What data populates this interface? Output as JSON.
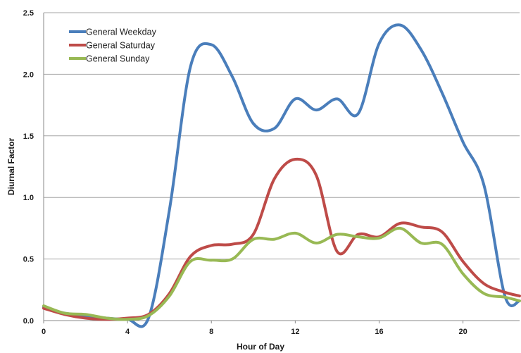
{
  "chart_data": {
    "type": "line",
    "title": "",
    "xlabel": "Hour of Day",
    "ylabel": "Diurnal Factor",
    "xlim": [
      0,
      22.7
    ],
    "ylim": [
      0,
      2.5
    ],
    "x_ticks": [
      0,
      4,
      8,
      12,
      16,
      20
    ],
    "x_tick_labels": [
      "0",
      "4",
      "8",
      "12",
      "16",
      "20"
    ],
    "y_ticks": [
      0,
      0.5,
      1.0,
      1.5,
      2.0,
      2.5
    ],
    "y_tick_labels": [
      "0.0",
      "0.5",
      "1.0",
      "1.5",
      "2.0",
      "2.5"
    ],
    "grid": "horizontal",
    "legend_position": "top-left",
    "series": [
      {
        "name": "General Weekday",
        "color": "#4a7ebb",
        "x": [
          0,
          1,
          2,
          3,
          4,
          5,
          6,
          7,
          8,
          9,
          10,
          11,
          12,
          13,
          14,
          15,
          16,
          17,
          18,
          19,
          20,
          21,
          22,
          22.7
        ],
        "y": [
          0.11,
          0.06,
          0.04,
          0.02,
          0.01,
          0.02,
          0.9,
          2.06,
          2.24,
          1.98,
          1.6,
          1.56,
          1.8,
          1.71,
          1.8,
          1.68,
          2.25,
          2.4,
          2.2,
          1.85,
          1.45,
          1.1,
          0.2,
          0.16
        ]
      },
      {
        "name": "General Saturday",
        "color": "#be4b48",
        "x": [
          0,
          1,
          2,
          3,
          4,
          5,
          6,
          7,
          8,
          9,
          10,
          11,
          12,
          13,
          14,
          15,
          16,
          17,
          18,
          19,
          20,
          21,
          22,
          22.7
        ],
        "y": [
          0.1,
          0.05,
          0.02,
          0.01,
          0.02,
          0.05,
          0.22,
          0.52,
          0.61,
          0.62,
          0.7,
          1.15,
          1.31,
          1.18,
          0.56,
          0.7,
          0.68,
          0.79,
          0.76,
          0.72,
          0.48,
          0.3,
          0.23,
          0.2
        ]
      },
      {
        "name": "General Sunday",
        "color": "#98b954",
        "x": [
          0,
          1,
          2,
          3,
          4,
          5,
          6,
          7,
          8,
          9,
          10,
          11,
          12,
          13,
          14,
          15,
          16,
          17,
          18,
          19,
          20,
          21,
          22,
          22.7
        ],
        "y": [
          0.12,
          0.06,
          0.05,
          0.02,
          0.01,
          0.04,
          0.2,
          0.48,
          0.49,
          0.5,
          0.66,
          0.66,
          0.71,
          0.63,
          0.7,
          0.68,
          0.67,
          0.75,
          0.63,
          0.62,
          0.38,
          0.22,
          0.19,
          0.16
        ]
      }
    ]
  }
}
